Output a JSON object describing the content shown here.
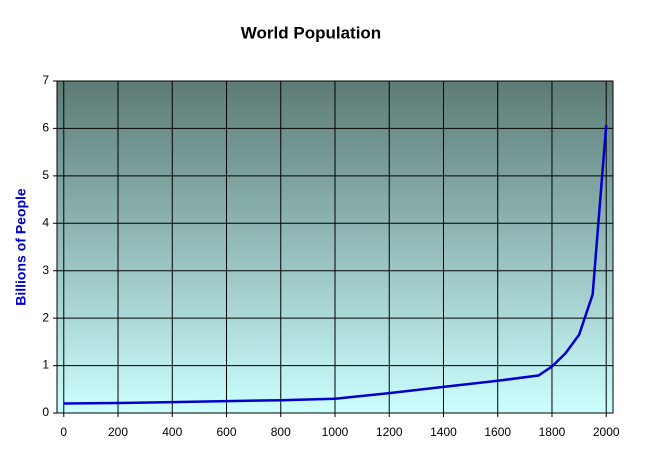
{
  "chart_data": {
    "type": "line",
    "title": "World Population",
    "y_label": "Billions of People",
    "x": [
      0,
      200,
      400,
      600,
      800,
      1000,
      1200,
      1400,
      1600,
      1750,
      1800,
      1850,
      1900,
      1950,
      2000
    ],
    "series": [
      {
        "name": "World Population",
        "color": "#0000cc",
        "values": [
          0.2,
          0.21,
          0.23,
          0.25,
          0.27,
          0.3,
          0.42,
          0.55,
          0.68,
          0.79,
          0.98,
          1.26,
          1.65,
          2.5,
          6.07
        ]
      }
    ],
    "xlim": [
      -25,
      2025
    ],
    "xticks": [
      0,
      200,
      400,
      600,
      800,
      1000,
      1200,
      1400,
      1600,
      1800,
      2000
    ],
    "ylim": [
      0,
      7
    ],
    "yticks": [
      0,
      1,
      2,
      3,
      4,
      5,
      6,
      7
    ],
    "grid": true
  }
}
